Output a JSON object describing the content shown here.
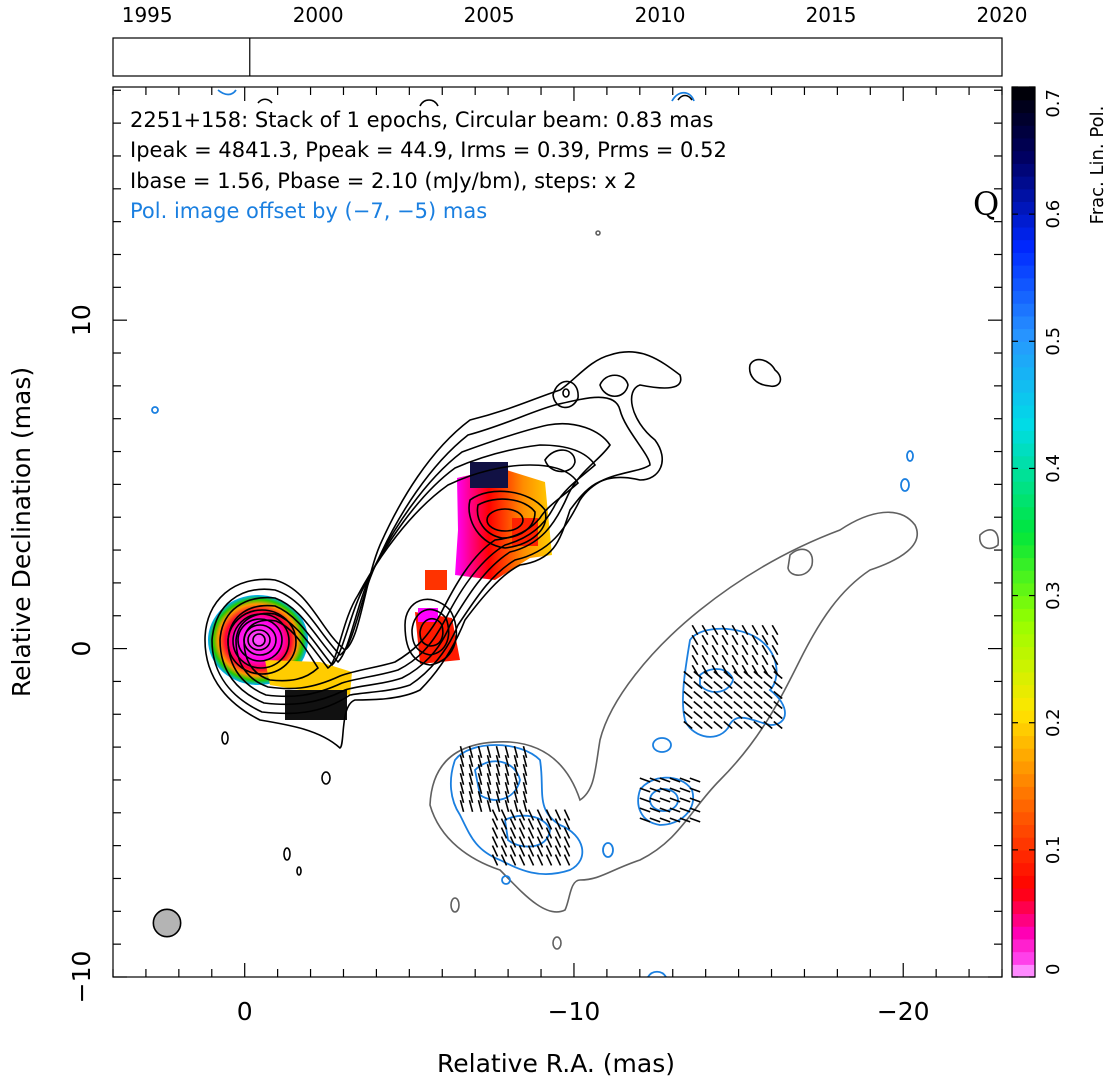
{
  "chart_data": {
    "type": "contour",
    "timeline": {
      "years": [
        1995,
        2000,
        2005,
        2010,
        2015,
        2020
      ],
      "range": [
        1994.0,
        2020.0
      ],
      "epochs": [
        1998.0
      ]
    },
    "title_lines": [
      "2251+158: Stack of 1 epochs, Circular beam: 0.83 mas",
      "Ipeak = 4841.3, Ppeak = 44.9, Irms = 0.39, Prms = 0.52",
      "Ibase = 1.56, Pbase = 2.10 (mJy/bm), steps: x 2",
      "Pol. image offset by (−7, −5) mas"
    ],
    "quality_flag": "Q",
    "xlabel": "Relative R.A. (mas)",
    "ylabel": "Relative Declination (mas)",
    "xlim": [
      4,
      -23
    ],
    "ylim": [
      -10,
      17.1
    ],
    "xticks": [
      0,
      -10,
      -20
    ],
    "xtick_labels": [
      "0",
      "−10",
      "−20"
    ],
    "yticks": [
      -10,
      0,
      10
    ],
    "ytick_labels": [
      "−10",
      "0",
      "10"
    ],
    "beam_diameter_mas": 0.83,
    "colorbar": {
      "label": "Frac. Lin. Pol.",
      "min": 0,
      "max": 0.7,
      "ticks": [
        0,
        0.1,
        0.2,
        0.3,
        0.4,
        0.5,
        0.6,
        0.7
      ],
      "tick_labels": [
        "0",
        "0.1",
        "0.2",
        "0.3",
        "0.4",
        "0.5",
        "0.6",
        "0.7"
      ]
    },
    "colors": {
      "total_intensity_contours": "#000000",
      "polarized_contours": "#1a7fe0",
      "offset_total_intensity": "#606060",
      "beam_fill": "#b4b4b4",
      "offset_text": "#1a7fe0"
    }
  }
}
